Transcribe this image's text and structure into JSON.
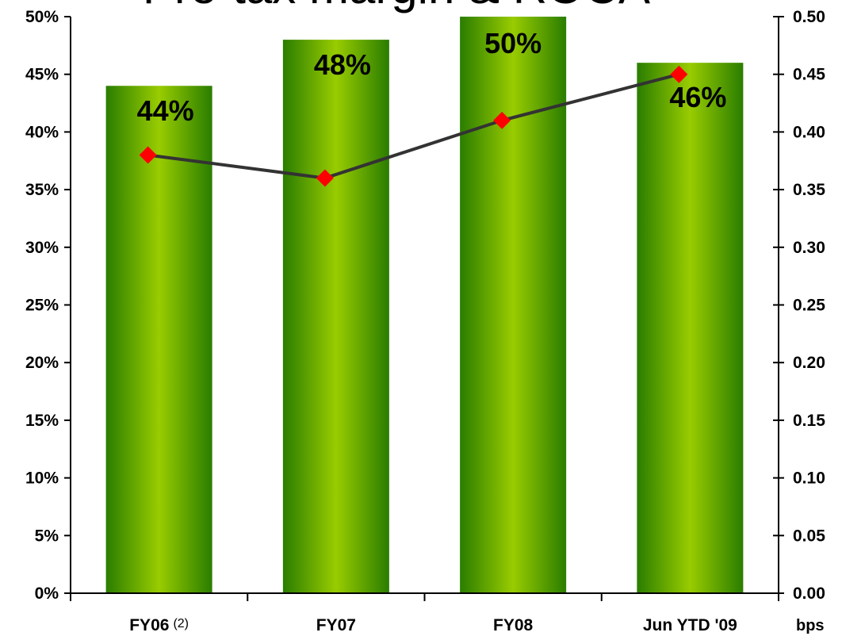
{
  "chart_data": {
    "type": "bar",
    "title": "Pre-tax margin & ROCA",
    "categories": [
      "FY06",
      "FY07",
      "FY08",
      "Jun YTD '09"
    ],
    "category_footnotes": [
      "(2)",
      "",
      "",
      ""
    ],
    "series": [
      {
        "type": "bar",
        "axis": "left",
        "values": [
          44,
          48,
          50,
          46
        ],
        "data_labels": [
          "44%",
          "48%",
          "50%",
          "46%"
        ]
      },
      {
        "type": "line",
        "axis": "right",
        "values": [
          0.38,
          0.36,
          0.41,
          0.45
        ]
      }
    ],
    "y_left": {
      "range": [
        0,
        50
      ],
      "ticks": [
        "0%",
        "5%",
        "10%",
        "15%",
        "20%",
        "25%",
        "30%",
        "35%",
        "40%",
        "45%",
        "50%"
      ]
    },
    "y_right": {
      "range": [
        0,
        0.5
      ],
      "ticks": [
        "0.00",
        "0.05",
        "0.10",
        "0.15",
        "0.20",
        "0.25",
        "0.30",
        "0.35",
        "0.40",
        "0.45",
        "0.50"
      ],
      "unit_label": "bps"
    },
    "grid": false,
    "legend": "none",
    "colors": {
      "bar_edge": "#2a7d00",
      "bar_center": "#99cc00",
      "line": "#333333",
      "marker": "#ff0000",
      "axis": "#000000"
    }
  }
}
